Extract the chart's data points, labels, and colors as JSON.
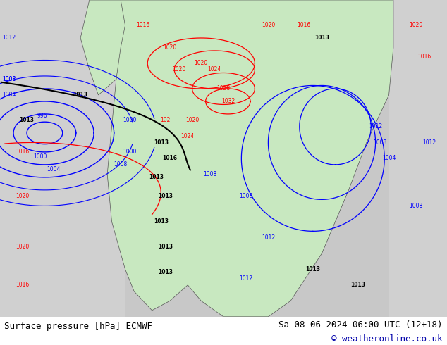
{
  "title_left": "Surface pressure [hPa] ECMWF",
  "title_right": "Sa 08-06-2024 06:00 UTC (12+18)",
  "copyright": "© weatheronline.co.uk",
  "fig_width": 6.34,
  "fig_height": 4.9,
  "dpi": 100,
  "bg_color": "#d8d8d8",
  "map_bg_color": "#c8c8c8",
  "land_color": "#e8e8e8",
  "green_color": "#c8e8c0",
  "text_color": "#000000",
  "blue_color": "#0000cc",
  "red_color": "#cc0000",
  "black_color": "#000000",
  "bottom_bar_height": 0.082,
  "bottom_bg": "#ffffff",
  "footer_fontsize": 9,
  "copyright_color": "#0000aa"
}
